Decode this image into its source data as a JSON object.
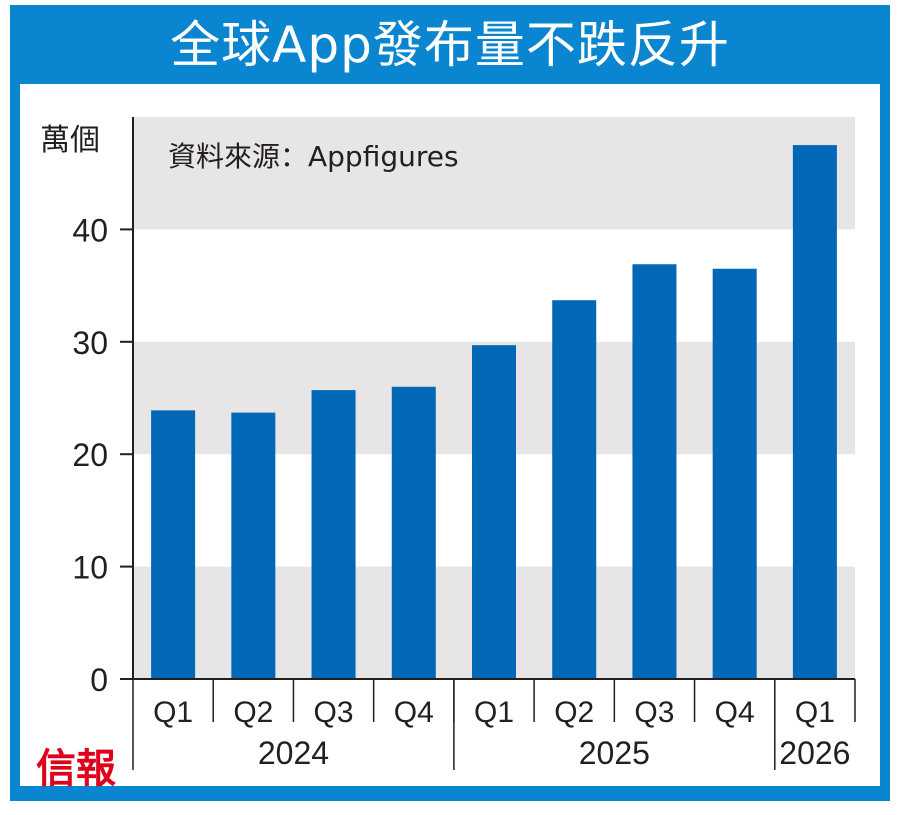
{
  "header": {
    "title": "全球App發布量不跌反升"
  },
  "logo": "信報",
  "chart_data": {
    "type": "bar",
    "title": "全球App發布量不跌反升",
    "ylabel": "萬個",
    "source": "資料來源：Appfigures",
    "categories": [
      "Q1",
      "Q2",
      "Q3",
      "Q4",
      "Q1",
      "Q2",
      "Q3",
      "Q4",
      "Q1"
    ],
    "years": [
      {
        "label": "2024",
        "count": 4
      },
      {
        "label": "2025",
        "count": 4
      },
      {
        "label": "2026",
        "count": 1
      }
    ],
    "values": [
      23.9,
      23.7,
      25.7,
      26.0,
      29.7,
      33.7,
      36.9,
      36.5,
      47.5
    ],
    "ylim": [
      0,
      50
    ],
    "yticks": [
      0,
      10,
      20,
      30,
      40
    ],
    "bar_color": "#0068b7",
    "band_color": "#e7e5e6",
    "grid": "alternating bands"
  }
}
